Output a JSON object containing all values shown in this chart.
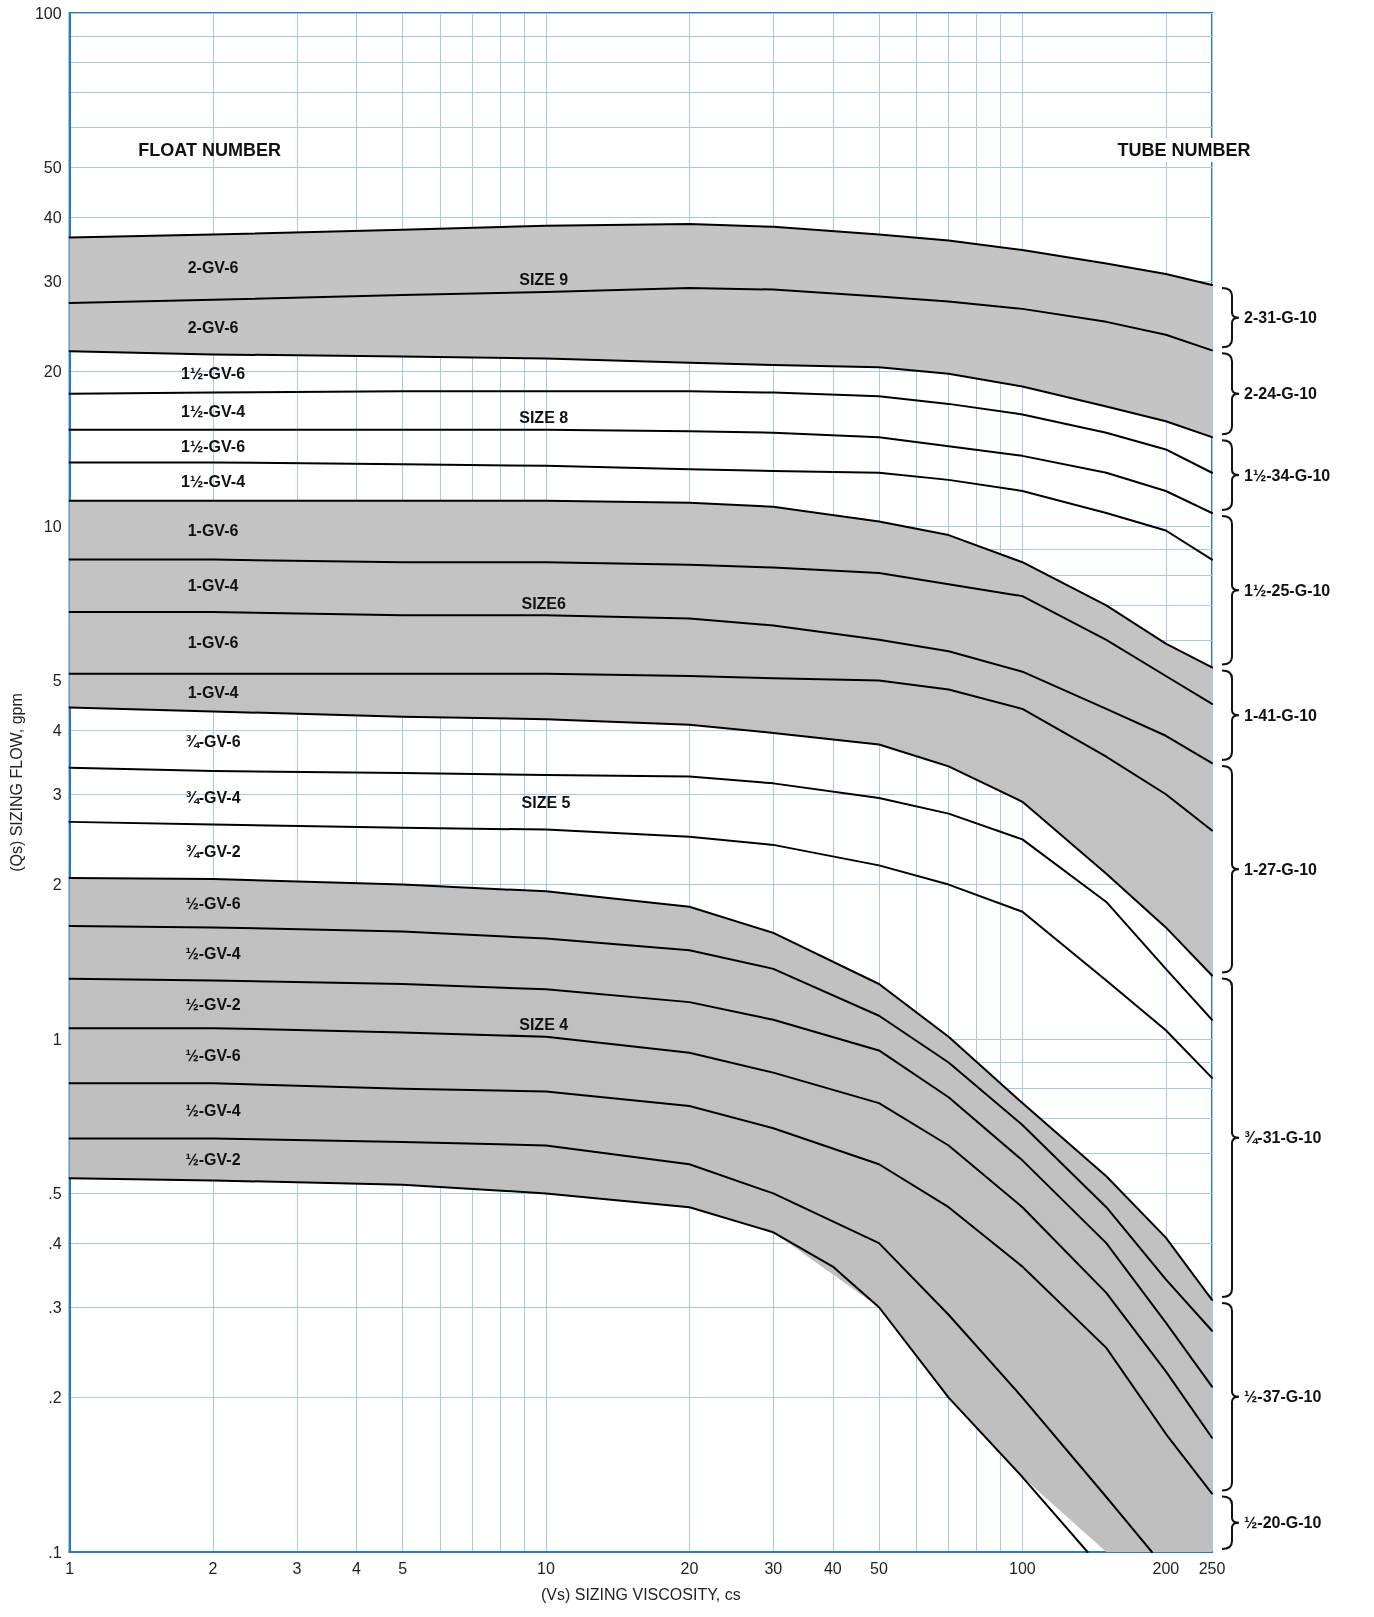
{
  "chart_data": {
    "type": "line",
    "xlabel": "(Vs) SIZING VISCOSITY, cs",
    "ylabel": "(Qs) SIZING FLOW, gpm",
    "log": "xy",
    "grid": true,
    "legend": false,
    "marker": "none",
    "line_style": "solid",
    "xlim": [
      1,
      250
    ],
    "ylim": [
      0.1,
      100
    ],
    "xticks": [
      1,
      2,
      3,
      4,
      5,
      {
        "value": 6,
        "label": null
      },
      {
        "value": 7,
        "label": null
      },
      {
        "value": 8,
        "label": null
      },
      {
        "value": 9,
        "label": null
      },
      10,
      20,
      30,
      40,
      50,
      {
        "value": 60,
        "label": null
      },
      {
        "value": 70,
        "label": null
      },
      {
        "value": 80,
        "label": null
      },
      {
        "value": 90,
        "label": null
      },
      100,
      200,
      250
    ],
    "yticks": [
      {
        "value": 0.1,
        "label": ".1"
      },
      {
        "value": 0.2,
        "label": ".2"
      },
      {
        "value": 0.3,
        "label": ".3"
      },
      {
        "value": 0.4,
        "label": ".4"
      },
      {
        "value": 0.5,
        "label": ".5"
      },
      {
        "value": 0.6,
        "label": null
      },
      {
        "value": 0.7,
        "label": null
      },
      {
        "value": 0.8,
        "label": null
      },
      {
        "value": 0.9,
        "label": null
      },
      1,
      2,
      3,
      4,
      5,
      {
        "value": 6,
        "label": null
      },
      {
        "value": 7,
        "label": null
      },
      {
        "value": 8,
        "label": null
      },
      {
        "value": 9,
        "label": null
      },
      10,
      20,
      30,
      40,
      50,
      {
        "value": 60,
        "label": null
      },
      {
        "value": 70,
        "label": null
      },
      {
        "value": 80,
        "label": null
      },
      {
        "value": 90,
        "label": null
      },
      100
    ],
    "x": [
      1,
      2,
      5,
      10,
      20,
      30,
      50,
      70,
      100,
      150,
      200,
      250
    ],
    "series": [
      {
        "color": "#000000",
        "values": [
          36.5,
          37,
          37.8,
          38.5,
          38.8,
          38.3,
          37,
          36,
          34.5,
          32.5,
          31,
          29.5
        ]
      },
      {
        "name": "SIZE 9",
        "color": "#000000",
        "values": [
          27.2,
          27.6,
          28.2,
          28.6,
          29.1,
          28.9,
          28,
          27.4,
          26.5,
          25,
          23.6,
          22
        ],
        "upper": [
          36.5,
          37,
          37.8,
          38.5,
          38.8,
          38.3,
          37,
          36,
          34.5,
          32.5,
          31,
          29.5
        ],
        "lower": [
          21.9,
          21.6,
          21.4,
          21.2,
          20.8,
          20.6,
          20.4,
          19.8,
          18.7,
          17.1,
          16,
          14.9
        ]
      },
      {
        "color": "#000000",
        "values": [
          21.9,
          21.6,
          21.4,
          21.2,
          20.8,
          20.6,
          20.4,
          19.8,
          18.7,
          17.1,
          16,
          14.9
        ]
      },
      {
        "color": "#000000",
        "values": [
          18.1,
          18.2,
          18.3,
          18.3,
          18.3,
          18.2,
          17.9,
          17.3,
          16.5,
          15.2,
          14.1,
          12.7
        ]
      },
      {
        "name": "SIZE 8",
        "color": "#000000",
        "values": [
          15.4,
          15.4,
          15.4,
          15.4,
          15.3,
          15.2,
          14.9,
          14.3,
          13.7,
          12.7,
          11.7,
          10.6
        ]
      },
      {
        "color": "#000000",
        "values": [
          13.3,
          13.3,
          13.2,
          13.1,
          12.9,
          12.8,
          12.7,
          12.3,
          11.7,
          10.6,
          9.8,
          8.6
        ]
      },
      {
        "color": "#000000",
        "values": [
          11.2,
          11.2,
          11.2,
          11.2,
          11.1,
          10.9,
          10.2,
          9.6,
          8.5,
          7,
          5.9,
          5.3
        ]
      },
      {
        "color": "#000000",
        "values": [
          8.6,
          8.6,
          8.5,
          8.5,
          8.4,
          8.3,
          8.1,
          7.7,
          7.3,
          6,
          5.1,
          4.5
        ],
        "upper": [
          11.2,
          11.2,
          11.2,
          11.2,
          11.1,
          10.9,
          10.2,
          9.6,
          8.5,
          7,
          5.9,
          5.3
        ],
        "lower": [
          6.8,
          6.8,
          6.7,
          6.7,
          6.6,
          6.4,
          6,
          5.7,
          5.2,
          4.4,
          3.9,
          3.45
        ]
      },
      {
        "name": "SIZE6",
        "color": "#000000",
        "values": [
          6.8,
          6.8,
          6.7,
          6.7,
          6.6,
          6.4,
          6,
          5.7,
          5.2,
          4.4,
          3.9,
          3.45
        ]
      },
      {
        "color": "#000000",
        "values": [
          5.15,
          5.15,
          5.15,
          5.15,
          5.1,
          5.05,
          5,
          4.8,
          4.4,
          3.55,
          3,
          2.55
        ],
        "upper": [
          6.8,
          6.8,
          6.7,
          6.7,
          6.6,
          6.4,
          6,
          5.7,
          5.2,
          4.4,
          3.9,
          3.45
        ],
        "lower": [
          4.43,
          4.35,
          4.25,
          4.2,
          4.1,
          3.95,
          3.75,
          3.4,
          2.9,
          2.1,
          1.65,
          1.33
        ]
      },
      {
        "color": "#000000",
        "values": [
          4.43,
          4.35,
          4.25,
          4.2,
          4.1,
          3.95,
          3.75,
          3.4,
          2.9,
          2.1,
          1.65,
          1.33
        ]
      },
      {
        "color": "#000000",
        "values": [
          3.38,
          3.33,
          3.3,
          3.27,
          3.25,
          3.15,
          2.95,
          2.75,
          2.45,
          1.85,
          1.37,
          1.09
        ]
      },
      {
        "color": "#000000",
        "values": [
          2.65,
          2.62,
          2.58,
          2.56,
          2.48,
          2.39,
          2.18,
          2,
          1.77,
          1.3,
          1.04,
          0.84
        ]
      },
      {
        "color": "#000000",
        "values": [
          2.06,
          2.05,
          2,
          1.94,
          1.81,
          1.61,
          1.28,
          1.01,
          0.75,
          0.54,
          0.41,
          0.31
        ]
      },
      {
        "color": "#000000",
        "values": [
          1.66,
          1.65,
          1.62,
          1.57,
          1.49,
          1.37,
          1.11,
          0.9,
          0.68,
          0.47,
          0.34,
          0.27
        ],
        "upper": [
          2.06,
          2.05,
          2,
          1.94,
          1.81,
          1.61,
          1.28,
          1.01,
          0.75,
          0.54,
          0.41,
          0.31
        ],
        "lower": [
          1.31,
          1.3,
          1.28,
          1.25,
          1.18,
          1.09,
          0.95,
          0.77,
          0.58,
          0.4,
          0.28,
          0.21
        ]
      },
      {
        "color": "#000000",
        "values": [
          1.31,
          1.3,
          1.28,
          1.25,
          1.18,
          1.09,
          0.95,
          0.77,
          0.58,
          0.4,
          0.28,
          0.21
        ]
      },
      {
        "name": "SIZE 4",
        "color": "#000000",
        "values": [
          1.05,
          1.05,
          1.03,
          1.01,
          0.94,
          0.86,
          0.75,
          0.62,
          0.47,
          0.32,
          0.225,
          0.167
        ],
        "upper": [
          1.31,
          1.3,
          1.28,
          1.25,
          1.18,
          1.09,
          0.95,
          0.77,
          0.58,
          0.4,
          0.28,
          0.21
        ],
        "lower": [
          0.82,
          0.82,
          0.8,
          0.79,
          0.74,
          0.67,
          0.57,
          0.47,
          0.36,
          0.25,
          0.17,
          0.13
        ]
      },
      {
        "color": "#000000",
        "values": [
          0.82,
          0.82,
          0.8,
          0.79,
          0.74,
          0.67,
          0.57,
          0.47,
          0.36,
          0.25,
          0.17,
          0.13
        ]
      },
      {
        "color": "#000000",
        "x": [
          1,
          2,
          5,
          10,
          20,
          30,
          50,
          70,
          100,
          150,
          187,
          200,
          250
        ],
        "values": [
          0.64,
          0.64,
          0.63,
          0.62,
          0.57,
          0.5,
          0.4,
          0.29,
          0.2,
          0.128,
          0.1,
          null,
          null
        ],
        "upper": [
          0.82,
          0.82,
          0.8,
          0.79,
          0.74,
          0.67,
          0.57,
          0.47,
          0.36,
          0.25,
          0.19,
          0.17,
          0.13
        ],
        "lower": [
          0.535,
          0.53,
          0.52,
          0.5,
          0.47,
          0.42,
          0.3,
          0.2,
          0.14,
          0.1,
          0.1,
          0.1,
          0.1
        ]
      },
      {
        "color": "#000000",
        "x": [
          1,
          2,
          5,
          10,
          20,
          30,
          40,
          50,
          70,
          100,
          137
        ],
        "values": [
          0.535,
          0.53,
          0.52,
          0.5,
          0.47,
          0.42,
          0.36,
          0.3,
          0.2,
          0.14,
          0.1
        ]
      }
    ],
    "annotations": [
      "FLOAT NUMBER",
      "TUBE NUMBER",
      "SIZE 5",
      "2-GV-6",
      "2-GV-6",
      "1½-GV-6",
      "1½-GV-4",
      "1½-GV-6",
      "1½-GV-4",
      "1-GV-6",
      "1-GV-4",
      "1-GV-6",
      "1-GV-4",
      "¾-GV-6",
      "¾-GV-4",
      "¾-GV-2",
      "½-GV-6",
      "½-GV-4",
      "½-GV-2",
      "½-GV-6",
      "½-GV-4",
      "½-GV-2",
      "2-31-G-10",
      "2-24-G-10",
      "1½-34-G-10",
      "1½-25-G-10",
      "1-41-G-10",
      "1-27-G-10",
      "¾-31-G-10",
      "½-37-G-10",
      "½-20-G-10"
    ]
  }
}
